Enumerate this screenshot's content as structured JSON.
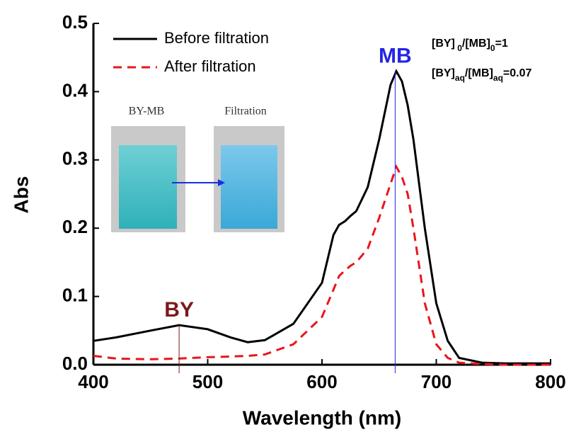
{
  "chart_data": {
    "type": "line",
    "xlabel": "Wavelength (nm)",
    "ylabel": "Abs",
    "x": [
      400,
      420,
      450,
      475,
      500,
      520,
      535,
      550,
      575,
      600,
      610,
      615,
      620,
      625,
      630,
      640,
      650,
      660,
      665,
      670,
      675,
      680,
      690,
      700,
      710,
      720,
      740,
      760,
      800
    ],
    "series": [
      {
        "name": "Before filtration",
        "color": "#000000",
        "dash": false,
        "values": [
          0.035,
          0.04,
          0.05,
          0.058,
          0.052,
          0.04,
          0.033,
          0.036,
          0.06,
          0.12,
          0.19,
          0.205,
          0.21,
          0.218,
          0.225,
          0.26,
          0.33,
          0.41,
          0.43,
          0.415,
          0.38,
          0.33,
          0.2,
          0.09,
          0.035,
          0.01,
          0.003,
          0.002,
          0.002
        ]
      },
      {
        "name": "After filtration",
        "color": "#e8161b",
        "dash": true,
        "values": [
          0.013,
          0.009,
          0.008,
          0.009,
          0.011,
          0.012,
          0.013,
          0.015,
          0.03,
          0.07,
          0.11,
          0.13,
          0.138,
          0.145,
          0.15,
          0.17,
          0.215,
          0.265,
          0.29,
          0.275,
          0.25,
          0.2,
          0.09,
          0.03,
          0.01,
          0.003,
          0.001,
          0.0,
          0.0
        ]
      }
    ],
    "xlim": [
      400,
      800
    ],
    "ylim": [
      0,
      0.5
    ],
    "xticks": [
      400,
      500,
      600,
      700,
      800
    ],
    "yticks": [
      {
        "value": 0,
        "label": "0.0"
      },
      0.1,
      0.2,
      0.3,
      0.4,
      0.5
    ],
    "annotations": [
      {
        "text": "BY",
        "x": 475,
        "y": 0.058,
        "color": "#7b1a1a"
      },
      {
        "text": "MB",
        "x": 664,
        "y": 0.43,
        "color": "#2424e6"
      }
    ],
    "formulas": [
      [
        "[BY]",
        " 0",
        "/[MB]",
        "0",
        "=1"
      ],
      [
        "[BY]",
        "aq",
        "/[MB]",
        "aq",
        "=0.07"
      ]
    ],
    "inset": {
      "left_caption": "BY-MB",
      "right_caption": "Filtration"
    }
  }
}
